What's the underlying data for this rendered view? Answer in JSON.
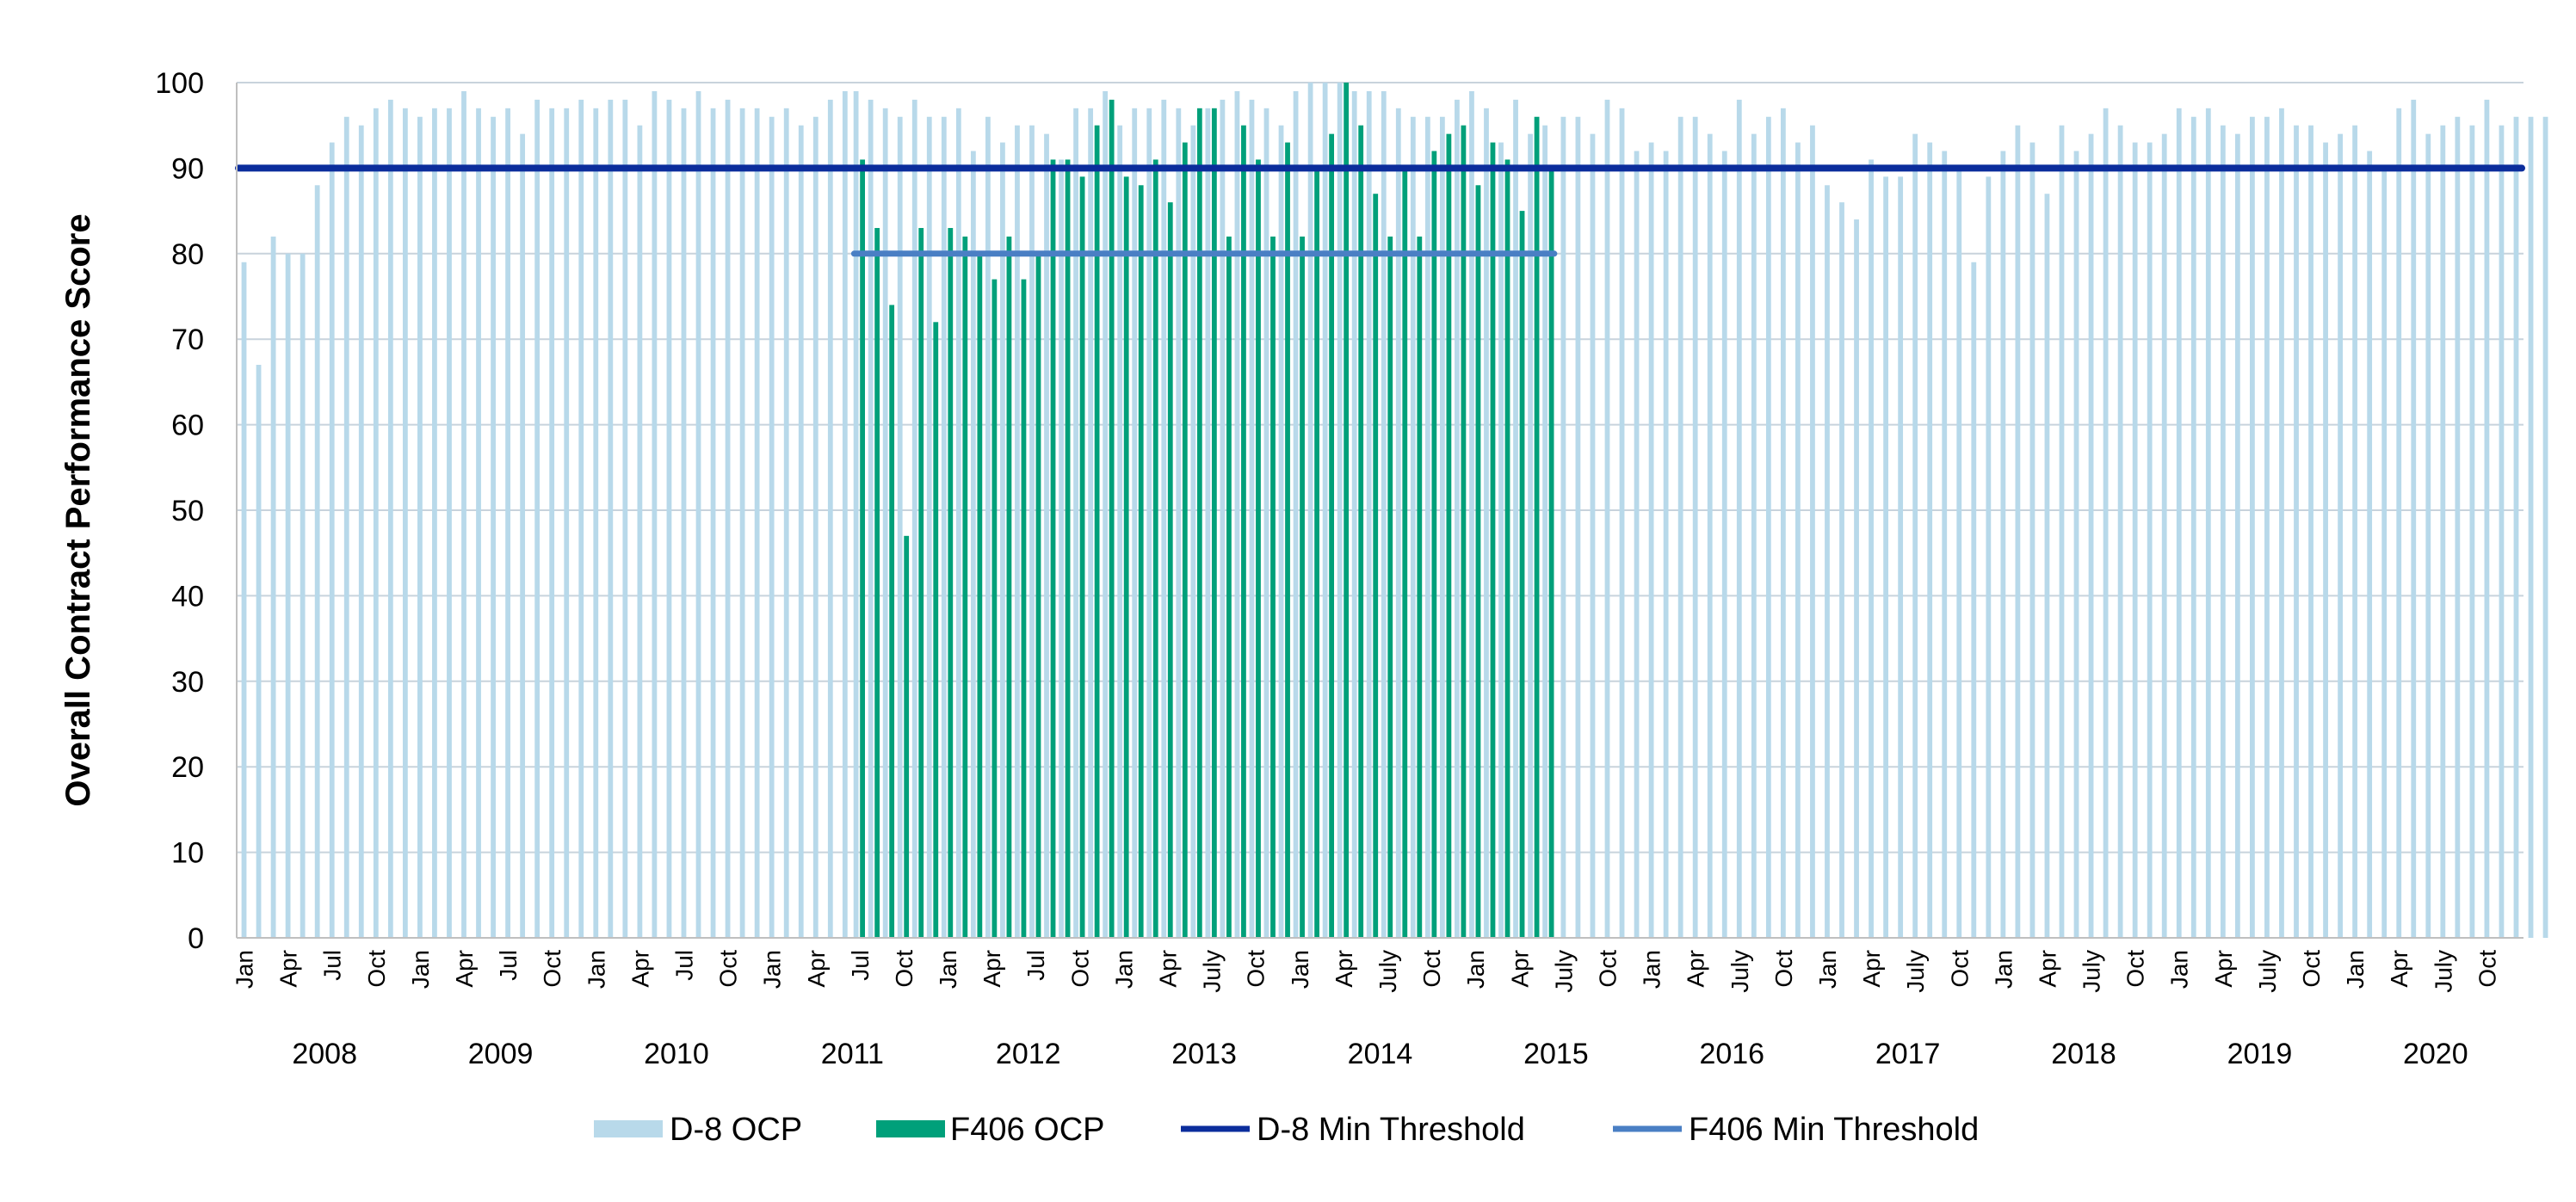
{
  "chart_data": {
    "type": "bar",
    "title": "",
    "ylabel": "Overall Contract Performance Score",
    "xlabel": "",
    "ylim": [
      0,
      100
    ],
    "y_ticks": [
      0,
      10,
      20,
      30,
      40,
      50,
      60,
      70,
      80,
      90,
      100
    ],
    "grid": "horizontal",
    "legend_placement": "bottom",
    "month_labels": [
      "Jan",
      "Apr",
      "Jul",
      "Oct",
      "Jan",
      "Apr",
      "Jul",
      "Oct",
      "Jan",
      "Apr",
      "Jul",
      "Oct",
      "Jan",
      "Apr",
      "Jul",
      "Oct",
      "Jan",
      "Apr",
      "Jul",
      "Oct",
      "Jan",
      "Apr",
      "July",
      "Oct",
      "Jan",
      "Apr",
      "July",
      "Oct",
      "Jan",
      "Apr",
      "July",
      "Oct",
      "Jan",
      "Apr",
      "July",
      "Oct",
      "Jan",
      "Apr",
      "July",
      "Oct",
      "Jan",
      "Apr",
      "July",
      "Oct",
      "Jan",
      "Apr",
      "July",
      "Oct",
      "Jan",
      "Apr",
      "July",
      "Oct"
    ],
    "years": [
      "2008",
      "2009",
      "2010",
      "2011",
      "2012",
      "2013",
      "2014",
      "2015",
      "2016",
      "2017",
      "2018",
      "2019",
      "2020"
    ],
    "series": [
      {
        "name": "D-8 OCP",
        "color": "#b8d9ea",
        "start": "2008-01",
        "values": [
          79,
          67,
          82,
          80,
          80,
          88,
          93,
          96,
          95,
          97,
          98,
          97,
          96,
          97,
          97,
          99,
          97,
          96,
          97,
          94,
          98,
          97,
          97,
          98,
          97,
          98,
          98,
          95,
          99,
          98,
          97,
          99,
          97,
          98,
          97,
          97,
          96,
          97,
          95,
          96,
          98,
          99,
          99,
          98,
          97,
          96,
          98,
          96,
          96,
          97,
          92,
          96,
          93,
          95,
          95,
          94,
          91,
          97,
          97,
          99,
          95,
          97,
          97,
          98,
          97,
          95,
          97,
          98,
          99,
          98,
          97,
          95,
          99,
          100,
          100,
          100,
          99,
          99,
          99,
          97,
          96,
          96,
          96,
          98,
          99,
          97,
          93,
          98,
          94,
          95,
          96,
          96,
          94,
          98,
          97,
          92,
          93,
          92,
          96,
          96,
          94,
          92,
          98,
          94,
          96,
          97,
          93,
          95,
          88,
          86,
          84,
          91,
          89,
          89,
          94,
          93,
          92,
          90,
          79,
          89,
          92,
          95,
          93,
          87,
          95,
          92,
          94,
          97,
          95,
          93,
          93,
          94,
          97,
          96,
          97,
          95,
          94,
          96,
          96,
          97,
          95,
          95,
          93,
          94,
          95,
          92,
          90,
          97,
          98,
          94,
          95,
          96,
          95,
          98,
          95,
          96,
          96,
          96
        ]
      },
      {
        "name": "F406 OCP",
        "color": "#00a07a",
        "start": "2011-07",
        "values": [
          91,
          83,
          74,
          47,
          83,
          72,
          83,
          82,
          80,
          77,
          82,
          77,
          80,
          91,
          91,
          89,
          95,
          98,
          89,
          88,
          91,
          86,
          93,
          97,
          97,
          82,
          95,
          91,
          82,
          93,
          82,
          90,
          94,
          100,
          95,
          87,
          82,
          90,
          82,
          92,
          94,
          95,
          88,
          93,
          91,
          85,
          96,
          90
        ]
      },
      {
        "name": "D-8 Min Threshold",
        "color": "#0b2d9c",
        "value": 90,
        "start": "2008-01",
        "end": "2020-12"
      },
      {
        "name": "F406 Min Threshold",
        "color": "#4a7fc4",
        "value": 80,
        "start": "2011-07",
        "end": "2015-06"
      }
    ]
  }
}
